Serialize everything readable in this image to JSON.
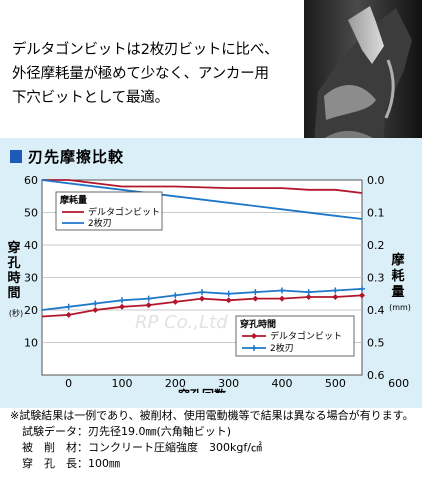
{
  "intro": {
    "lines": [
      "デルタゴンビットは2枚刃ビットに比べ、",
      "外径摩耗量が極めて少なく、アンカー用",
      "下穴ビットとして最適。"
    ]
  },
  "section_title": "刃先摩擦比較",
  "watermark": "RP Co.,Ltd",
  "colors": {
    "delta": "#b3152b",
    "twin": "#1f77c9",
    "section_marker": "#1c59b8",
    "band": "#dbeff8"
  },
  "icons": {
    "section_marker": "blue-square-icon",
    "drill": "drill-bit-photo-icon"
  },
  "chart_data": {
    "type": "line",
    "xlabel": "穿孔回数",
    "x_ticks": [
      "0",
      "100",
      "200",
      "300",
      "400",
      "500",
      "600"
    ],
    "xlim": [
      -50,
      550
    ],
    "left_axis": {
      "label_chars": [
        "穿",
        "孔",
        "時",
        "間"
      ],
      "unit": "(秒)",
      "ticks": [
        "60",
        "50",
        "40",
        "30",
        "20",
        "10"
      ],
      "ylim": [
        0,
        60
      ]
    },
    "right_axis": {
      "label_chars": [
        "摩",
        "耗",
        "量"
      ],
      "unit": "(mm)",
      "ticks": [
        "0.0",
        "0.1",
        "0.2",
        "0.3",
        "0.4",
        "0.5",
        "0.6"
      ],
      "ylim": [
        0,
        0.6
      ],
      "inverted": true
    },
    "legend_wear": {
      "title": "摩耗量",
      "entries": [
        "デルタゴンビット",
        "2枚刃"
      ]
    },
    "legend_time": {
      "title": "穿孔時間",
      "entries": [
        "デルタゴンビット",
        "2枚刃"
      ]
    },
    "series": [
      {
        "name": "デルタゴンビット",
        "group": "摩耗量",
        "axis": "right",
        "color": "#b3152b",
        "marker": "none",
        "x": [
          -50,
          0,
          100,
          200,
          300,
          400,
          450,
          500,
          550
        ],
        "y": [
          0.0,
          0.0,
          0.02,
          0.02,
          0.025,
          0.025,
          0.03,
          0.03,
          0.04
        ]
      },
      {
        "name": "2枚刃",
        "group": "摩耗量",
        "axis": "right",
        "color": "#1f77c9",
        "marker": "none",
        "x": [
          -50,
          0,
          100,
          200,
          300,
          400,
          500,
          550
        ],
        "y": [
          0.0,
          0.01,
          0.03,
          0.05,
          0.07,
          0.09,
          0.11,
          0.12
        ]
      },
      {
        "name": "デルタゴンビット",
        "group": "穿孔時間",
        "axis": "left",
        "color": "#b3152b",
        "marker": "diamond",
        "x": [
          -50,
          0,
          50,
          100,
          150,
          200,
          250,
          300,
          350,
          400,
          450,
          500,
          550
        ],
        "y": [
          18,
          18.5,
          20,
          21,
          21.5,
          22.5,
          23.5,
          23,
          23.5,
          23.5,
          24,
          24,
          24.5
        ]
      },
      {
        "name": "2枚刃",
        "group": "穿孔時間",
        "axis": "left",
        "color": "#1f77c9",
        "marker": "cross",
        "x": [
          -50,
          0,
          50,
          100,
          150,
          200,
          250,
          300,
          350,
          400,
          450,
          500,
          550
        ],
        "y": [
          20,
          21,
          22,
          23,
          23.5,
          24.5,
          25.5,
          25,
          25.5,
          26,
          25.5,
          26,
          26.5
        ]
      }
    ]
  },
  "notes": {
    "disclaimer": "※試験結果は一例であり、被削材、使用電動機等で結果は異なる場合が有ります。",
    "conditions": [
      "試験データ：刃先径19.0㎜(六角軸ビット)",
      "被　削　材：コンクリート圧縮強度　300kgf/㎠",
      "穿　孔　長：100㎜"
    ]
  }
}
